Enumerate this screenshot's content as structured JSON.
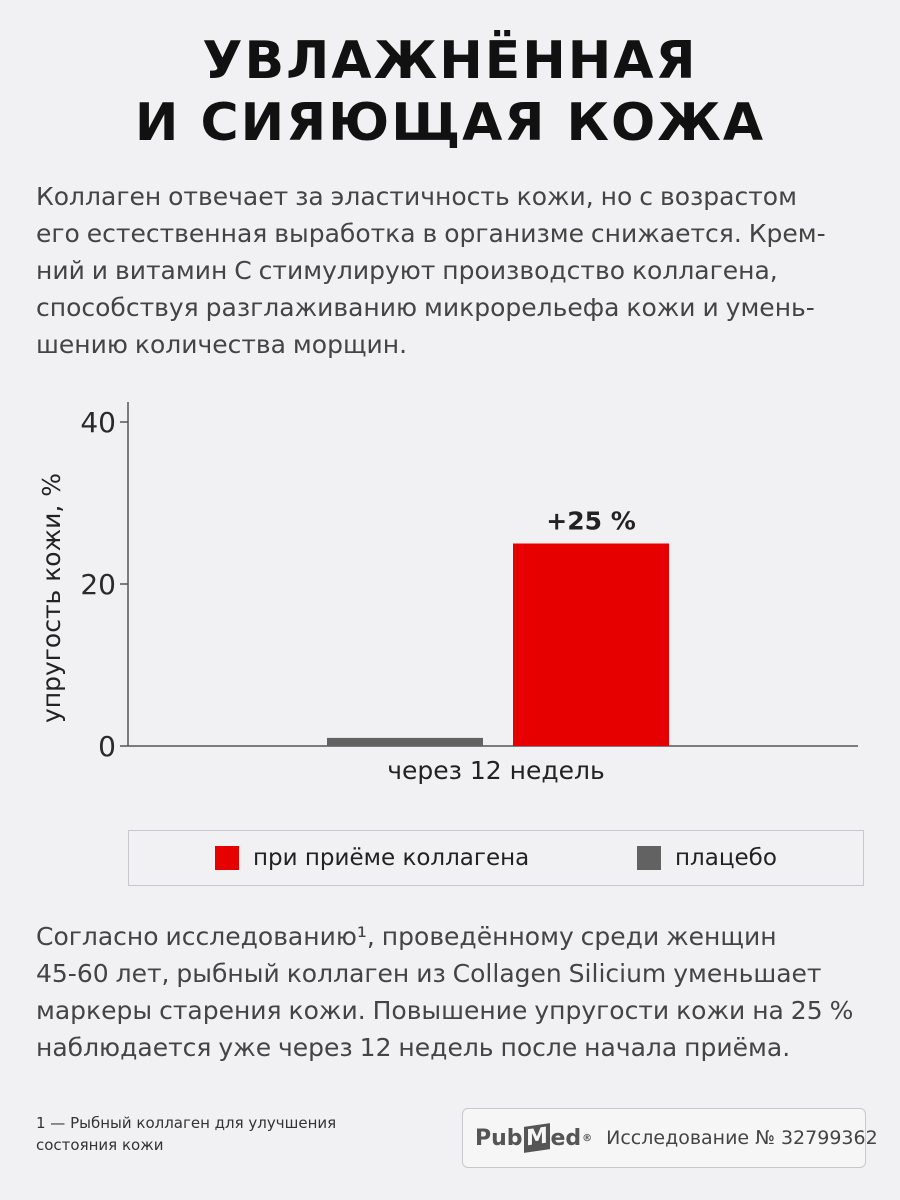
{
  "title": {
    "line1": "УВЛАЖНЁННАЯ",
    "line2": "И СИЯЮЩАЯ КОЖА"
  },
  "intro": {
    "lines": [
      "Коллаген отвечает за эластичность кожи, но с возрастом",
      "его естественная выработка в организме снижается. Крем-",
      "ний и витамин С стимулируют производство коллагена,",
      "способствуя разглаживанию микрорельефа кожи и умень-",
      "шению количества морщин."
    ]
  },
  "chart_data": {
    "type": "bar",
    "categories": [
      "через 12 недель"
    ],
    "series": [
      {
        "name": "плацебо",
        "values": [
          1
        ],
        "color": "#626262"
      },
      {
        "name": "при приёме коллагена",
        "values": [
          25
        ],
        "color": "#e60000"
      }
    ],
    "data_labels": [
      "",
      "+25 %"
    ],
    "ylabel": "упругость кожи, %",
    "yticks": [
      0,
      20,
      40
    ],
    "ylim": [
      0,
      40
    ],
    "grid": false,
    "legend_position": "bottom"
  },
  "legend": {
    "collagen": "при приёме коллагена",
    "placebo": "плацебо",
    "collagen_color": "#e60000",
    "placebo_color": "#626262"
  },
  "study": {
    "lines": [
      "Согласно исследованию¹, проведённому среди женщин",
      "45-60 лет, рыбный коллаген из Collagen Silicium уменьшает",
      "маркеры старения кожи. Повышение упругости кожи на 25 %",
      "наблюдается уже через 12 недель после начала приёма."
    ]
  },
  "footnote": {
    "line1": "1 — Рыбный коллаген для улучшения",
    "line2": "состояния кожи"
  },
  "source": {
    "logo_pub": "Pub",
    "logo_m": "M",
    "logo_ed": "ed",
    "logo_reg": "®",
    "reference": "Исследование № 32799362"
  }
}
